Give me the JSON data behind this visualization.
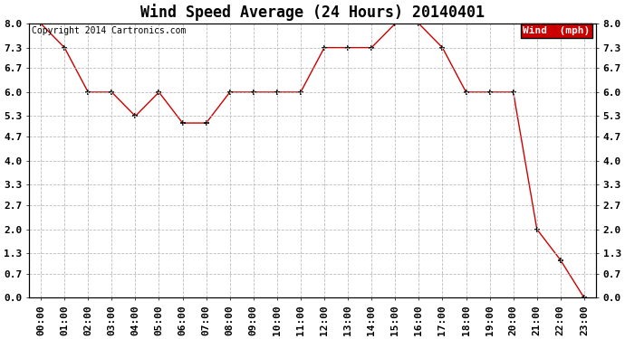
{
  "title": "Wind Speed Average (24 Hours) 20140401",
  "copyright": "Copyright 2014 Cartronics.com",
  "legend_label": "Wind  (mph)",
  "x_labels": [
    "00:00",
    "01:00",
    "02:00",
    "03:00",
    "04:00",
    "05:00",
    "06:00",
    "07:00",
    "08:00",
    "09:00",
    "10:00",
    "11:00",
    "12:00",
    "13:00",
    "14:00",
    "15:00",
    "16:00",
    "17:00",
    "18:00",
    "19:00",
    "20:00",
    "21:00",
    "22:00",
    "23:00"
  ],
  "y_values": [
    8.0,
    7.3,
    6.0,
    6.0,
    5.3,
    6.0,
    5.1,
    5.1,
    6.0,
    6.0,
    6.0,
    6.0,
    7.3,
    7.3,
    7.3,
    8.0,
    8.0,
    7.3,
    6.0,
    6.0,
    6.0,
    2.0,
    1.1,
    0.0
  ],
  "x_indices": [
    0,
    1,
    2,
    3,
    4,
    5,
    6,
    7,
    8,
    9,
    10,
    11,
    12,
    13,
    14,
    15,
    16,
    17,
    18,
    19,
    20,
    21,
    22,
    23
  ],
  "yticks": [
    0.0,
    0.7,
    1.3,
    2.0,
    2.7,
    3.3,
    4.0,
    4.7,
    5.3,
    6.0,
    6.7,
    7.3,
    8.0
  ],
  "ylim": [
    0.0,
    8.0
  ],
  "line_color": "#cc0000",
  "marker_color": "#000000",
  "bg_color": "#ffffff",
  "grid_color": "#bbbbbb",
  "legend_bg": "#cc0000",
  "legend_text_color": "#ffffff",
  "title_fontsize": 12,
  "tick_fontsize": 8,
  "copyright_fontsize": 7
}
